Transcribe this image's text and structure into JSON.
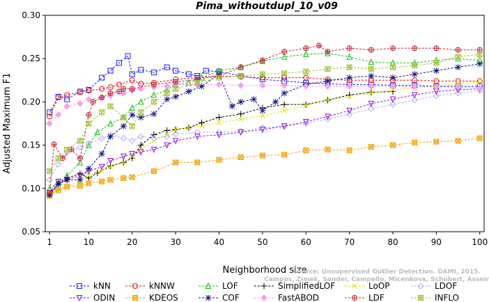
{
  "chart_data": {
    "type": "line",
    "title": "Pima_withoutdupl_10_v09",
    "xlabel": "Neighborhood size",
    "ylabel": "Adjusted Maximum F1",
    "xlim": [
      0,
      101
    ],
    "ylim": [
      0.05,
      0.3
    ],
    "xticks": [
      1,
      10,
      20,
      30,
      40,
      50,
      60,
      70,
      80,
      90,
      100
    ],
    "yticks": [
      0.05,
      0.1,
      0.15,
      0.2,
      0.25,
      0.3
    ],
    "ytick_labels": [
      "0.05",
      "0.10",
      "0.15",
      "0.20",
      "0.25",
      "0.30"
    ],
    "grid": false,
    "legend_position": "bottom",
    "series": [
      {
        "name": "kNN",
        "color": "#1a1aff",
        "marker": "square",
        "x": [
          1,
          3,
          5,
          8,
          10,
          13,
          15,
          17,
          19,
          20,
          22,
          25,
          28,
          30,
          33,
          35,
          37,
          40,
          45,
          50,
          55,
          60,
          65,
          70,
          75,
          80,
          85,
          90,
          95,
          100
        ],
        "y": [
          0.188,
          0.206,
          0.203,
          0.212,
          0.214,
          0.228,
          0.236,
          0.245,
          0.253,
          0.232,
          0.237,
          0.234,
          0.24,
          0.236,
          0.232,
          0.23,
          0.236,
          0.235,
          0.23,
          0.226,
          0.224,
          0.222,
          0.221,
          0.22,
          0.22,
          0.219,
          0.219,
          0.218,
          0.218,
          0.218
        ]
      },
      {
        "name": "kNNW",
        "color": "#e01010",
        "marker": "circle",
        "x": [
          1,
          3,
          5,
          8,
          10,
          13,
          15,
          17,
          20,
          22,
          25,
          30,
          35,
          40,
          45,
          50,
          55,
          60,
          65,
          70,
          75,
          80,
          85,
          90,
          95,
          100
        ],
        "y": [
          0.183,
          0.205,
          0.208,
          0.211,
          0.213,
          0.215,
          0.217,
          0.22,
          0.225,
          0.221,
          0.222,
          0.226,
          0.228,
          0.23,
          0.229,
          0.228,
          0.228,
          0.228,
          0.226,
          0.225,
          0.225,
          0.225,
          0.225,
          0.224,
          0.224,
          0.224
        ]
      },
      {
        "name": "LOF",
        "color": "#10c010",
        "marker": "triangle-up",
        "x": [
          1,
          3,
          5,
          8,
          10,
          12,
          15,
          18,
          20,
          22,
          25,
          28,
          30,
          33,
          36,
          40,
          45,
          50,
          55,
          60,
          65,
          70,
          75,
          80,
          85,
          90,
          95,
          100
        ],
        "y": [
          0.1,
          0.107,
          0.115,
          0.13,
          0.15,
          0.165,
          0.175,
          0.182,
          0.193,
          0.2,
          0.208,
          0.214,
          0.22,
          0.222,
          0.228,
          0.236,
          0.24,
          0.247,
          0.252,
          0.255,
          0.256,
          0.252,
          0.246,
          0.245,
          0.245,
          0.248,
          0.25,
          0.248
        ]
      },
      {
        "name": "SimplifiedLOF",
        "color": "#000000",
        "marker": "plus",
        "x": [
          1,
          3,
          5,
          8,
          10,
          12,
          15,
          18,
          20,
          22,
          25,
          28,
          30,
          33,
          36,
          40,
          45,
          50,
          55,
          60,
          65,
          70,
          75,
          80
        ],
        "y": [
          0.094,
          0.105,
          0.112,
          0.117,
          0.112,
          0.118,
          0.126,
          0.13,
          0.135,
          0.15,
          0.162,
          0.167,
          0.168,
          0.17,
          0.176,
          0.182,
          0.186,
          0.193,
          0.197,
          0.197,
          0.202,
          0.208,
          0.211,
          0.212
        ]
      },
      {
        "name": "LoOP",
        "color": "#e6e600",
        "marker": "x",
        "x": [
          1,
          3,
          5,
          8,
          10,
          13,
          15,
          18,
          20,
          22,
          25,
          28,
          30,
          33,
          36,
          40,
          45,
          50,
          55,
          60,
          65,
          70,
          75,
          80,
          85,
          90,
          95,
          100
        ],
        "y": [
          0.09,
          0.1,
          0.102,
          0.108,
          0.115,
          0.12,
          0.125,
          0.13,
          0.137,
          0.145,
          0.155,
          0.162,
          0.168,
          0.17,
          0.172,
          0.176,
          0.18,
          0.184,
          0.19,
          0.196,
          0.202,
          0.206,
          0.21,
          0.214,
          0.216,
          0.218,
          0.221,
          0.223
        ]
      },
      {
        "name": "LDOF",
        "color": "#b0b0ee",
        "marker": "diamond",
        "x": [
          1,
          3,
          5,
          8,
          10,
          13,
          15,
          18,
          20,
          22,
          25,
          28,
          30,
          35,
          40,
          45,
          50,
          55,
          60,
          65,
          70,
          75,
          80,
          85,
          90,
          95,
          100
        ],
        "y": [
          0.11,
          0.128,
          0.142,
          0.147,
          0.152,
          0.158,
          0.162,
          0.158,
          0.155,
          0.16,
          0.158,
          0.16,
          0.163,
          0.165,
          0.165,
          0.166,
          0.17,
          0.172,
          0.175,
          0.18,
          0.186,
          0.192,
          0.197,
          0.202,
          0.207,
          0.21,
          0.213
        ]
      },
      {
        "name": "ODIN",
        "color": "#9010d0",
        "marker": "triangle-down",
        "x": [
          1,
          3,
          5,
          8,
          10,
          13,
          15,
          18,
          20,
          22,
          25,
          28,
          30,
          35,
          40,
          45,
          50,
          55,
          60,
          65,
          70,
          75,
          80,
          85,
          90,
          95,
          100
        ],
        "y": [
          0.095,
          0.108,
          0.11,
          0.115,
          0.12,
          0.125,
          0.132,
          0.137,
          0.14,
          0.142,
          0.145,
          0.15,
          0.155,
          0.16,
          0.162,
          0.165,
          0.168,
          0.172,
          0.177,
          0.183,
          0.19,
          0.198,
          0.203,
          0.208,
          0.212,
          0.214,
          0.215
        ]
      },
      {
        "name": "KDEOS",
        "color": "#f0a000",
        "marker": "square-x",
        "x": [
          1,
          3,
          5,
          8,
          10,
          13,
          15,
          18,
          20,
          25,
          30,
          35,
          40,
          45,
          50,
          55,
          60,
          65,
          70,
          75,
          80,
          85,
          90,
          95,
          100
        ],
        "y": [
          0.093,
          0.098,
          0.102,
          0.103,
          0.106,
          0.108,
          0.11,
          0.112,
          0.113,
          0.12,
          0.13,
          0.13,
          0.133,
          0.136,
          0.138,
          0.139,
          0.144,
          0.145,
          0.144,
          0.148,
          0.15,
          0.153,
          0.154,
          0.155,
          0.158
        ]
      },
      {
        "name": "COF",
        "color": "#101080",
        "marker": "asterisk",
        "x": [
          1,
          3,
          5,
          8,
          10,
          13,
          15,
          18,
          20,
          22,
          25,
          28,
          30,
          33,
          36,
          40,
          43,
          45,
          48,
          50,
          53,
          55,
          60,
          65,
          70,
          75,
          80,
          85,
          90,
          95,
          100
        ],
        "y": [
          0.092,
          0.105,
          0.11,
          0.11,
          0.123,
          0.14,
          0.16,
          0.172,
          0.185,
          0.182,
          0.186,
          0.203,
          0.206,
          0.212,
          0.218,
          0.232,
          0.195,
          0.2,
          0.203,
          0.19,
          0.2,
          0.21,
          0.22,
          0.224,
          0.228,
          0.23,
          0.228,
          0.232,
          0.236,
          0.24,
          0.244
        ]
      },
      {
        "name": "FastABOD",
        "color": "#f2a0f2",
        "marker": "diamond-filled",
        "x": [
          1,
          3,
          5,
          8,
          10,
          13,
          15,
          18,
          20,
          22,
          25,
          28,
          30,
          35,
          40,
          45,
          50,
          55,
          60,
          65,
          70,
          75,
          80,
          85,
          90,
          95,
          100
        ],
        "y": [
          0.175,
          0.185,
          0.195,
          0.198,
          0.203,
          0.205,
          0.207,
          0.21,
          0.213,
          0.215,
          0.217,
          0.218,
          0.22,
          0.22,
          0.22,
          0.219,
          0.219,
          0.219,
          0.218,
          0.218,
          0.218,
          0.218,
          0.218,
          0.218,
          0.217,
          0.217,
          0.216
        ]
      },
      {
        "name": "LDF",
        "color": "#c02030",
        "marker": "circle-plus",
        "x": [
          1,
          2,
          4,
          6,
          8,
          10,
          11,
          13,
          15,
          17,
          18,
          20,
          25,
          30,
          35,
          40,
          45,
          50,
          55,
          60,
          63,
          65,
          70,
          75,
          80,
          85,
          90,
          95,
          100
        ],
        "y": [
          0.095,
          0.151,
          0.135,
          0.145,
          0.135,
          0.185,
          0.2,
          0.205,
          0.21,
          0.212,
          0.215,
          0.215,
          0.22,
          0.223,
          0.226,
          0.23,
          0.24,
          0.248,
          0.258,
          0.262,
          0.265,
          0.258,
          0.262,
          0.26,
          0.262,
          0.262,
          0.262,
          0.26,
          0.26
        ]
      },
      {
        "name": "INFLO",
        "color": "#a0c030",
        "marker": "star-box",
        "x": [
          1,
          3,
          5,
          8,
          10,
          13,
          15,
          18,
          20,
          22,
          25,
          28,
          30,
          35,
          40,
          45,
          50,
          55,
          60,
          65,
          70,
          75,
          80,
          85,
          90,
          95,
          100
        ],
        "y": [
          0.12,
          0.135,
          0.145,
          0.155,
          0.175,
          0.188,
          0.195,
          0.182,
          0.172,
          0.188,
          0.2,
          0.21,
          0.215,
          0.222,
          0.228,
          0.23,
          0.232,
          0.233,
          0.235,
          0.238,
          0.24,
          0.238,
          0.24,
          0.242,
          0.245,
          0.252,
          0.255
        ]
      }
    ]
  },
  "watermark": {
    "line1": "Source: Unsupervised Outlier Detection. DAMI, 2015.",
    "line2": "Campos, Zimek, Sander, Campello, Micenkova, Schubert, Assent, Houle"
  }
}
